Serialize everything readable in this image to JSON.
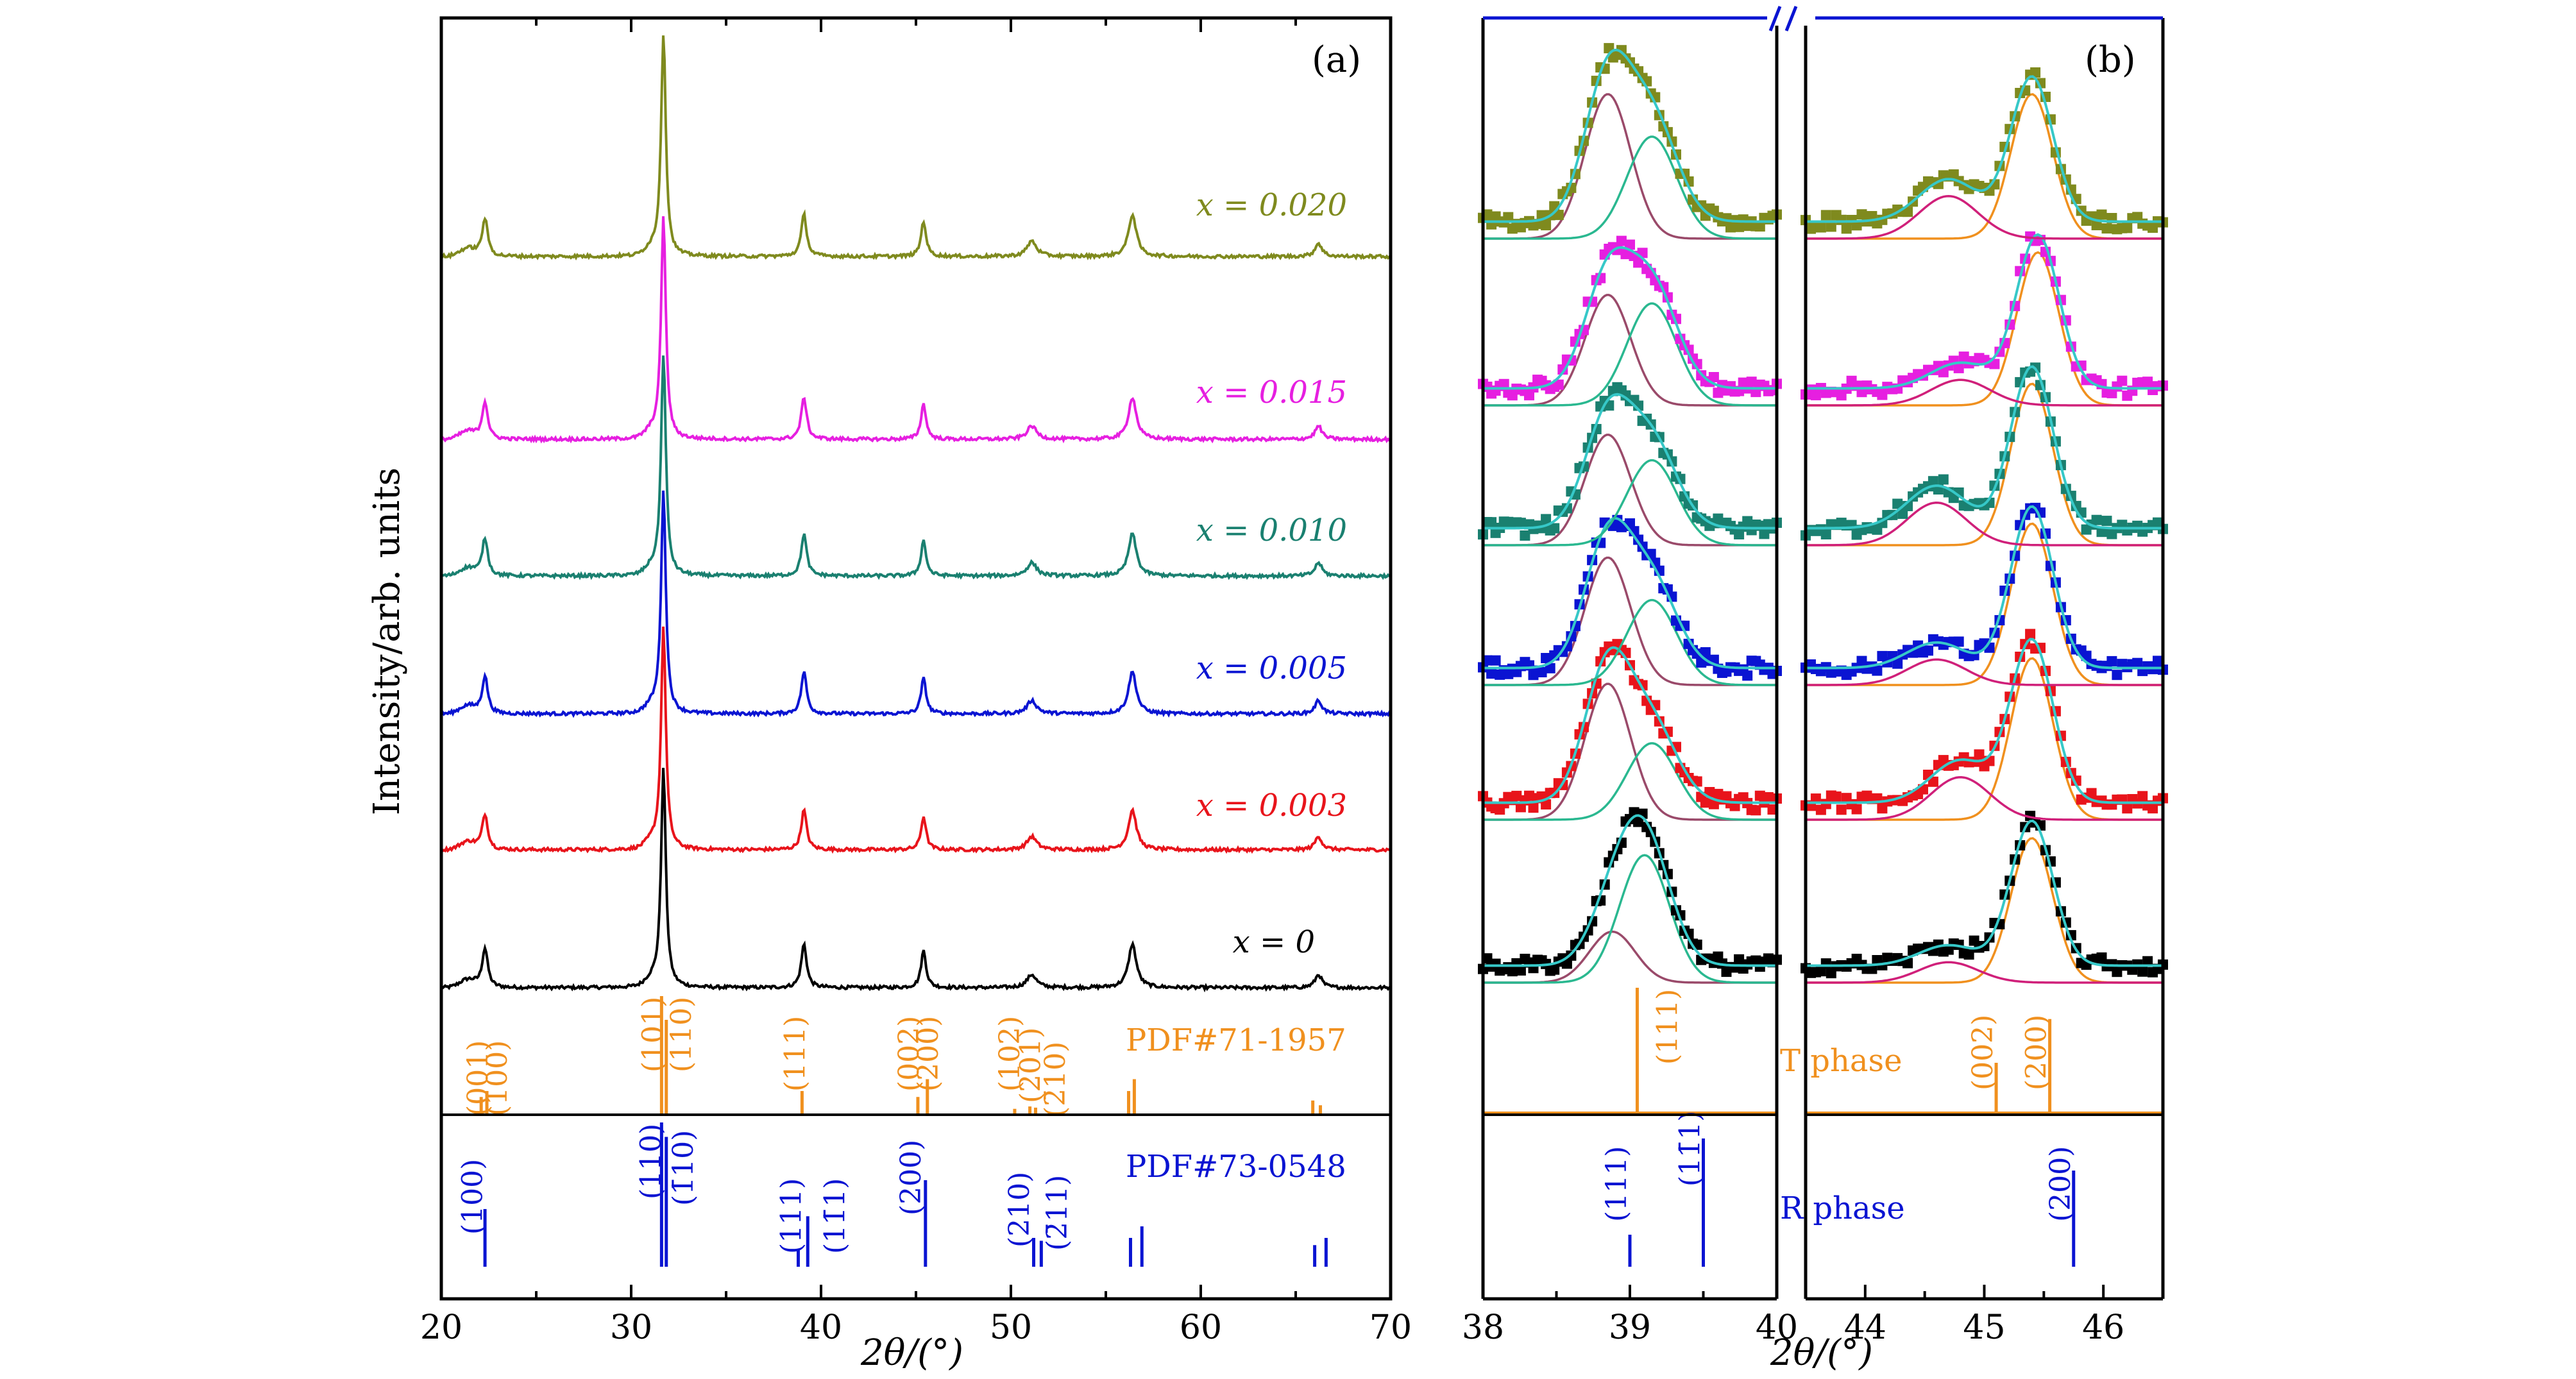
{
  "figure": {
    "y_axis_label": "Intensity/arb. units",
    "x_axis_label_a": "2θ/(°)",
    "x_axis_label_b": "2θ/(°)"
  },
  "chart_data": [
    {
      "type": "line",
      "panel_label": "(a)",
      "xlabel": "2θ/(°)",
      "ylabel": "Intensity/arb. units",
      "xlim": [
        20,
        70
      ],
      "xticks": [
        "20",
        "30",
        "40",
        "50",
        "60",
        "70"
      ],
      "peaks_2theta": [
        22.3,
        31.7,
        39.1,
        45.4,
        51.1,
        56.4,
        66.2
      ],
      "series": [
        {
          "name": "x = 0",
          "color": "#000000",
          "relative_peak_heights": [
            0.18,
            1.0,
            0.2,
            0.17,
            0.06,
            0.2,
            0.06
          ]
        },
        {
          "name": "x = 0.003",
          "color": "#e8141b",
          "relative_peak_heights": [
            0.16,
            1.0,
            0.18,
            0.15,
            0.06,
            0.18,
            0.06
          ]
        },
        {
          "name": "x = 0.005",
          "color": "#0a14d2",
          "relative_peak_heights": [
            0.17,
            1.0,
            0.19,
            0.16,
            0.06,
            0.19,
            0.06
          ]
        },
        {
          "name": "x = 0.010",
          "color": "#1a8070",
          "relative_peak_heights": [
            0.17,
            1.0,
            0.19,
            0.16,
            0.06,
            0.19,
            0.06
          ]
        },
        {
          "name": "x = 0.015",
          "color": "#e61fe0",
          "relative_peak_heights": [
            0.17,
            1.0,
            0.19,
            0.16,
            0.06,
            0.19,
            0.06
          ]
        },
        {
          "name": "x = 0.020",
          "color": "#7f8a1e",
          "relative_peak_heights": [
            0.17,
            1.0,
            0.19,
            0.16,
            0.07,
            0.19,
            0.06
          ]
        }
      ],
      "reference_T": {
        "name": "PDF#71-1957",
        "color": "#f0901e",
        "sticks": [
          {
            "x": 22.1,
            "h": 0.15
          },
          {
            "x": 22.4,
            "h": 0.2
          },
          {
            "x": 31.6,
            "h": 1.0
          },
          {
            "x": 31.85,
            "h": 0.8
          },
          {
            "x": 39.0,
            "h": 0.2
          },
          {
            "x": 45.1,
            "h": 0.15
          },
          {
            "x": 45.6,
            "h": 0.3
          },
          {
            "x": 50.2,
            "h": 0.05
          },
          {
            "x": 51.0,
            "h": 0.07
          },
          {
            "x": 51.3,
            "h": 0.06
          },
          {
            "x": 56.2,
            "h": 0.2
          },
          {
            "x": 56.5,
            "h": 0.3
          },
          {
            "x": 65.9,
            "h": 0.12
          },
          {
            "x": 66.3,
            "h": 0.08
          }
        ],
        "labels": [
          "(001)",
          "(100)",
          "(101)",
          "(110)",
          "(111)",
          "(002)",
          "(200)",
          "(102)",
          "(201)",
          "(2̄10)"
        ]
      },
      "reference_R": {
        "name": "PDF#73-0548",
        "color": "#0a14d2",
        "sticks": [
          {
            "x": 22.3,
            "h": 0.4
          },
          {
            "x": 31.6,
            "h": 1.0
          },
          {
            "x": 31.85,
            "h": 0.9
          },
          {
            "x": 38.8,
            "h": 0.12
          },
          {
            "x": 39.3,
            "h": 0.35
          },
          {
            "x": 45.5,
            "h": 0.6
          },
          {
            "x": 51.2,
            "h": 0.2
          },
          {
            "x": 51.6,
            "h": 0.18
          },
          {
            "x": 56.3,
            "h": 0.2
          },
          {
            "x": 56.9,
            "h": 0.28
          },
          {
            "x": 66.0,
            "h": 0.15
          },
          {
            "x": 66.6,
            "h": 0.2
          }
        ],
        "labels": [
          "(100)",
          "(110)",
          "(1̄10)",
          "(111)",
          "(11̄1)",
          "(200)",
          "(210)",
          "(2̄11)"
        ]
      }
    },
    {
      "type": "line",
      "panel_label": "(b)",
      "xlabel": "2θ/(°)",
      "left_segment": {
        "xlim": [
          38,
          40
        ],
        "xticks": [
          "38",
          "39",
          "40"
        ]
      },
      "right_segment": {
        "xlim": [
          43.5,
          46.5
        ],
        "xticks": [
          "44",
          "45",
          "46"
        ]
      },
      "axis_break": true,
      "t_phase_label": "T phase",
      "r_phase_label": "R phase",
      "t_phase_sticks": [
        {
          "x": 39.05,
          "h": 1.0,
          "label": "(111)"
        },
        {
          "x": 45.1,
          "h": 0.4,
          "label": "(002)"
        },
        {
          "x": 45.55,
          "h": 0.75,
          "label": "(200)"
        }
      ],
      "r_phase_sticks": [
        {
          "x": 39.0,
          "h": 0.25,
          "label": "(111)"
        },
        {
          "x": 39.5,
          "h": 1.0,
          "label": "(11̄1)"
        },
        {
          "x": 45.75,
          "h": 0.75,
          "label": "(200)"
        }
      ],
      "fit_colors": {
        "data": "series color",
        "sum": "#36c8c8",
        "component_1": "#9a4a6a",
        "component_2": "#2ab890",
        "tetragonal": "#f0901e",
        "rhombohedral": "#d0207a"
      },
      "series": [
        {
          "name": "x = 0",
          "color": "#000000",
          "peak111": {
            "c1": 38.88,
            "a1": 0.3,
            "c2": 39.1,
            "a2": 0.75
          },
          "peak200": {
            "t_c": 45.4,
            "t_a": 0.85,
            "r_c": 44.7,
            "r_a": 0.12
          }
        },
        {
          "name": "x = 0.003",
          "color": "#e8141b",
          "peak111": {
            "c1": 38.85,
            "a1": 0.8,
            "c2": 39.15,
            "a2": 0.45
          },
          "peak200": {
            "t_c": 45.4,
            "t_a": 0.95,
            "r_c": 44.8,
            "r_a": 0.25
          }
        },
        {
          "name": "x = 0.005",
          "color": "#0a14d2",
          "peak111": {
            "c1": 38.85,
            "a1": 0.75,
            "c2": 39.15,
            "a2": 0.5
          },
          "peak200": {
            "t_c": 45.4,
            "t_a": 0.95,
            "r_c": 44.6,
            "r_a": 0.15
          }
        },
        {
          "name": "x = 0.010",
          "color": "#1a8070",
          "peak111": {
            "c1": 38.85,
            "a1": 0.65,
            "c2": 39.15,
            "a2": 0.5
          },
          "peak200": {
            "t_c": 45.4,
            "t_a": 0.95,
            "r_c": 44.6,
            "r_a": 0.25
          }
        },
        {
          "name": "x = 0.015",
          "color": "#e61fe0",
          "peak111": {
            "c1": 38.85,
            "a1": 0.65,
            "c2": 39.15,
            "a2": 0.6
          },
          "peak200": {
            "t_c": 45.45,
            "t_a": 0.9,
            "r_c": 44.8,
            "r_a": 0.15
          }
        },
        {
          "name": "x = 0.020",
          "color": "#7f8a1e",
          "peak111": {
            "c1": 38.85,
            "a1": 0.85,
            "c2": 39.15,
            "a2": 0.6
          },
          "peak200": {
            "t_c": 45.4,
            "t_a": 0.85,
            "r_c": 44.7,
            "r_a": 0.25
          }
        }
      ]
    }
  ]
}
